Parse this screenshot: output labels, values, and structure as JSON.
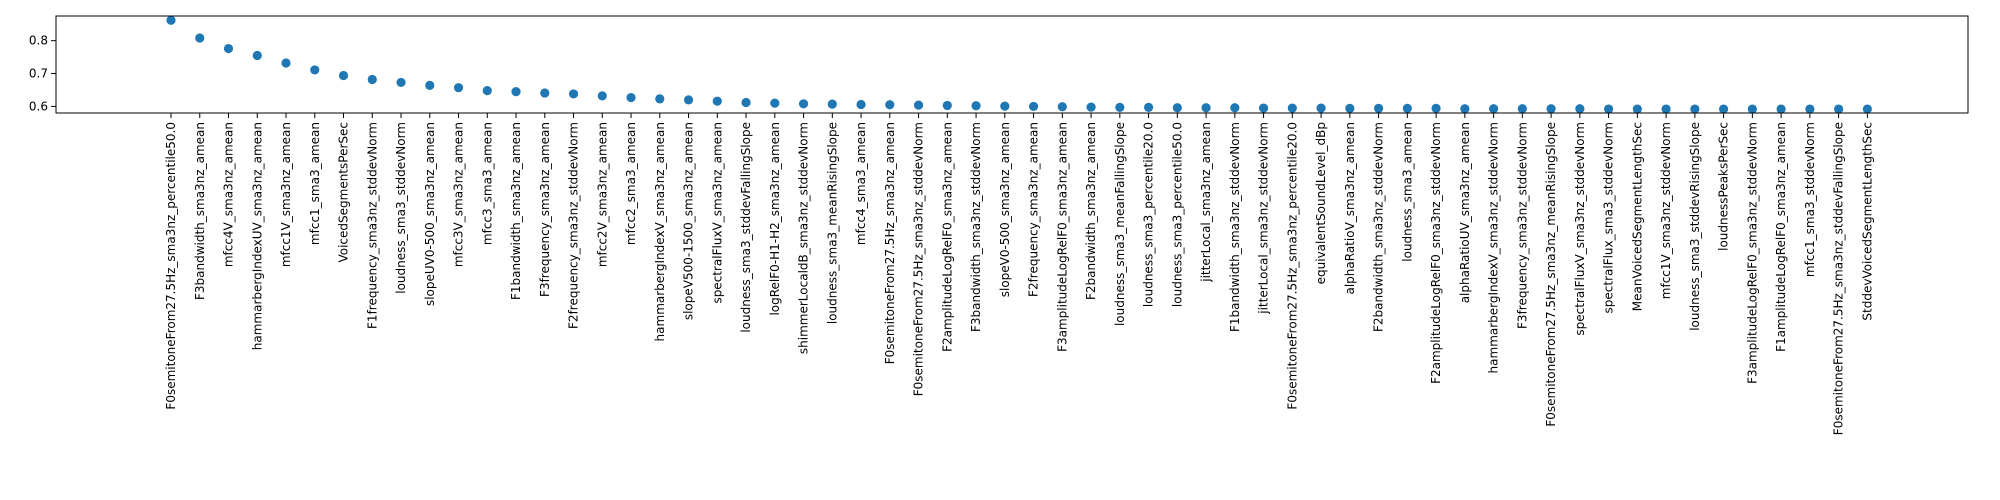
{
  "chart_data": {
    "type": "scatter",
    "title": "",
    "xlabel": "",
    "ylabel": "",
    "ylim": [
      0.58,
      0.875
    ],
    "yticks": [
      "0.6",
      "0.7",
      "0.8"
    ],
    "grid": false,
    "marker_color": "#1f77b4",
    "categories": [
      "F0semitoneFrom27.5Hz_sma3nz_percentile50.0",
      "F3bandwidth_sma3nz_amean",
      "mfcc4V_sma3nz_amean",
      "hammarbergIndexUV_sma3nz_amean",
      "mfcc1V_sma3nz_amean",
      "mfcc1_sma3_amean",
      "VoicedSegmentsPerSec",
      "F1frequency_sma3nz_stddevNorm",
      "loudness_sma3_stddevNorm",
      "slopeUV0-500_sma3nz_amean",
      "mfcc3V_sma3nz_amean",
      "mfcc3_sma3_amean",
      "F1bandwidth_sma3nz_amean",
      "F3frequency_sma3nz_amean",
      "F2frequency_sma3nz_stddevNorm",
      "mfcc2V_sma3nz_amean",
      "mfcc2_sma3_amean",
      "hammarbergIndexV_sma3nz_amean",
      "slopeV500-1500_sma3nz_amean",
      "spectralFluxV_sma3nz_amean",
      "loudness_sma3_stddevFallingSlope",
      "logRelF0-H1-H2_sma3nz_amean",
      "shimmerLocaldB_sma3nz_stddevNorm",
      "loudness_sma3_meanRisingSlope",
      "mfcc4_sma3_amean",
      "F0semitoneFrom27.5Hz_sma3nz_amean",
      "F0semitoneFrom27.5Hz_sma3nz_stddevNorm",
      "F2amplitudeLogRelF0_sma3nz_amean",
      "F3bandwidth_sma3nz_stddevNorm",
      "slopeV0-500_sma3nz_amean",
      "F2frequency_sma3nz_amean",
      "F3amplitudeLogRelF0_sma3nz_amean",
      "F2bandwidth_sma3nz_amean",
      "loudness_sma3_meanFallingSlope",
      "loudness_sma3_percentile20.0",
      "loudness_sma3_percentile50.0",
      "jitterLocal_sma3nz_amean",
      "F1bandwidth_sma3nz_stddevNorm",
      "jitterLocal_sma3nz_stddevNorm",
      "F0semitoneFrom27.5Hz_sma3nz_percentile20.0",
      "equivalentSoundLevel_dBp",
      "alphaRatioV_sma3nz_amean",
      "F2bandwidth_sma3nz_stddevNorm",
      "loudness_sma3_amean",
      "F2amplitudeLogRelF0_sma3nz_stddevNorm",
      "alphaRatioUV_sma3nz_amean",
      "hammarbergIndexV_sma3nz_stddevNorm",
      "F3frequency_sma3nz_stddevNorm",
      "F0semitoneFrom27.5Hz_sma3nz_meanRisingSlope",
      "spectralFluxV_sma3nz_stddevNorm",
      "spectralFlux_sma3_stddevNorm",
      "MeanVoicedSegmentLengthSec",
      "mfcc1V_sma3nz_stddevNorm",
      "loudness_sma3_stddevRisingSlope",
      "loudnessPeaksPerSec",
      "F3amplitudeLogRelF0_sma3nz_stddevNorm",
      "F1amplitudeLogRelF0_sma3nz_amean",
      "mfcc1_sma3_stddevNorm",
      "F0semitoneFrom27.5Hz_sma3nz_stddevFallingSlope",
      "StddevVoicedSegmentLengthSec"
    ],
    "values": [
      0.862,
      0.808,
      0.776,
      0.755,
      0.732,
      0.711,
      0.694,
      0.682,
      0.673,
      0.664,
      0.657,
      0.648,
      0.645,
      0.641,
      0.638,
      0.632,
      0.627,
      0.623,
      0.62,
      0.616,
      0.612,
      0.61,
      0.608,
      0.607,
      0.606,
      0.605,
      0.604,
      0.603,
      0.602,
      0.601,
      0.6,
      0.599,
      0.598,
      0.597,
      0.597,
      0.596,
      0.596,
      0.596,
      0.595,
      0.595,
      0.595,
      0.594,
      0.594,
      0.594,
      0.594,
      0.593,
      0.593,
      0.593,
      0.593,
      0.593,
      0.592,
      0.592,
      0.592,
      0.592,
      0.592,
      0.592,
      0.592,
      0.592,
      0.592,
      0.592
    ]
  }
}
